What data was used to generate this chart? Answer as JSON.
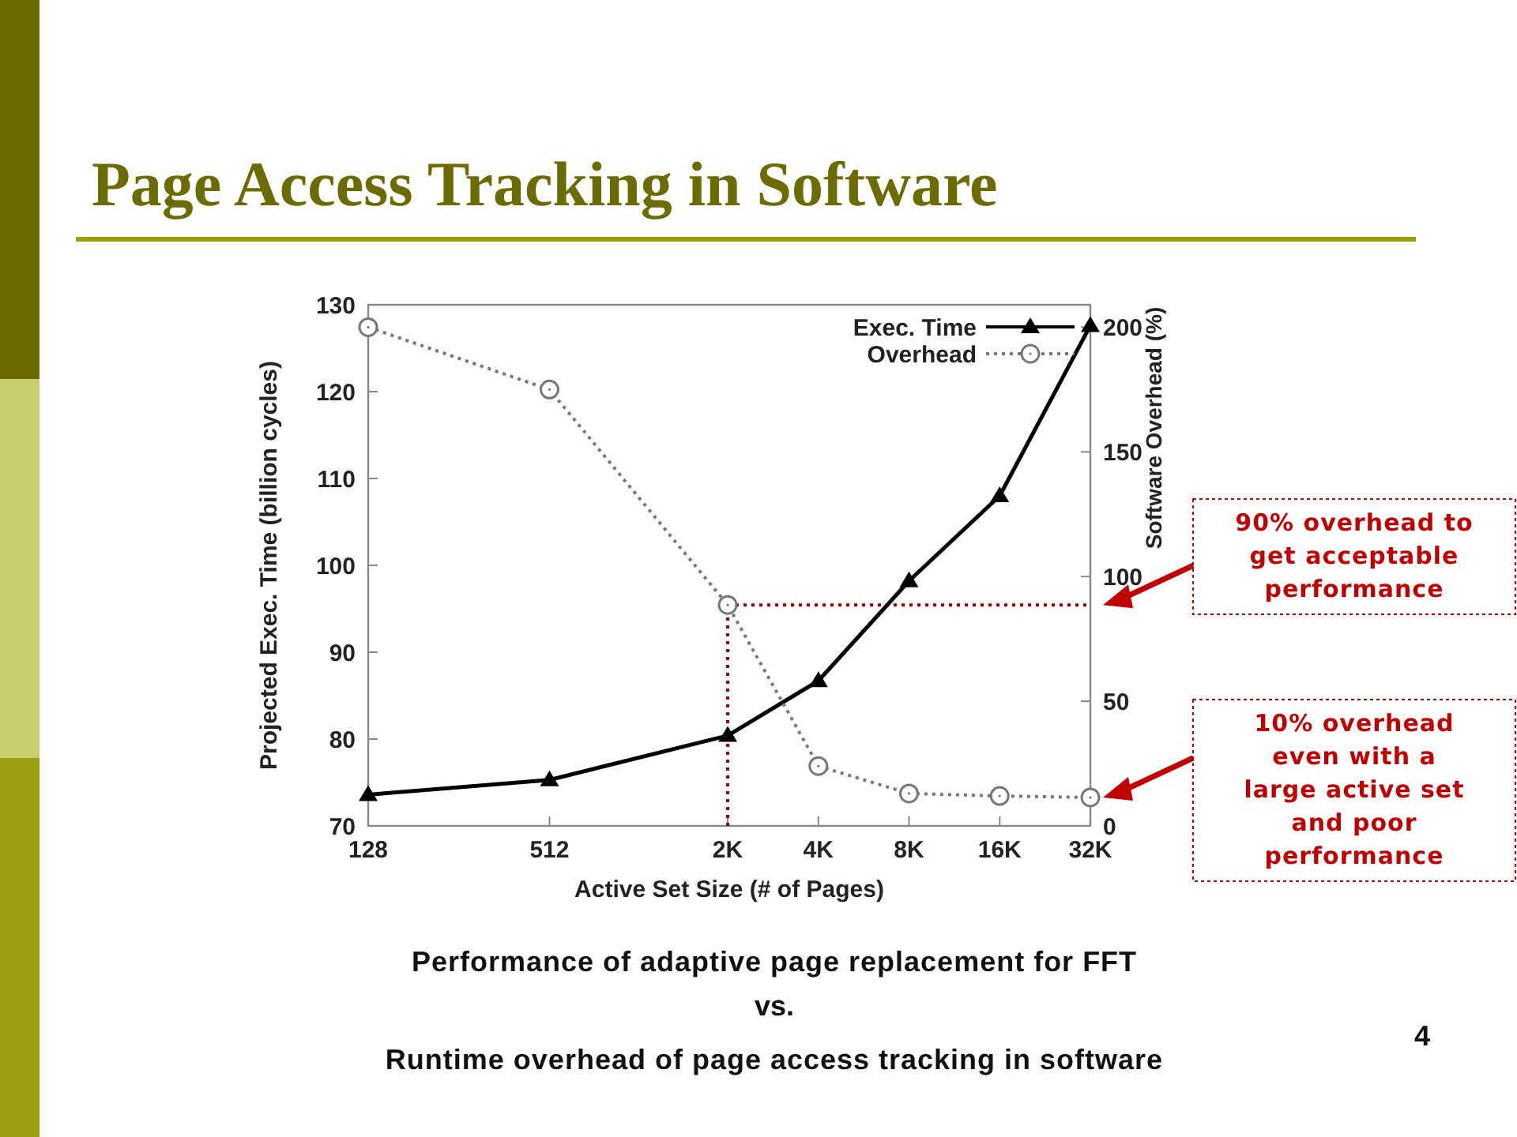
{
  "chart_data": {
    "type": "line",
    "title": "Page Access Tracking in Software",
    "xlabel": "Active Set Size (# of Pages)",
    "ylabel": "Projected Exec. Time (billion cycles)",
    "y2label": "Software Overhead (%)",
    "x": [
      128,
      512,
      2000,
      4000,
      8000,
      16000,
      32000
    ],
    "log": "x",
    "xlim": [
      128,
      32000
    ],
    "xticks": [
      128,
      512,
      {
        "value": 2000,
        "label": "2K"
      },
      {
        "value": 4000,
        "label": "4K"
      },
      {
        "value": 8000,
        "label": "8K"
      },
      {
        "value": 16000,
        "label": "16K"
      },
      {
        "value": 32000,
        "label": "32K"
      }
    ],
    "ylim": [
      70,
      130
    ],
    "yticks": [
      70,
      80,
      90,
      100,
      110,
      120,
      130
    ],
    "y2lim": [
      0,
      209
    ],
    "y2ticks": [
      0,
      50,
      100,
      150,
      200
    ],
    "series": [
      {
        "name": "Exec. Time",
        "color": "#000000",
        "marker": "triangle",
        "line_style": "solid",
        "values": [
          73.6,
          75.3,
          80.4,
          86.7,
          98.2,
          108,
          127.6
        ]
      },
      {
        "name": "Overhead",
        "color": "#777777",
        "marker": "circle",
        "line_style": "dotted",
        "axis": "y2",
        "values": [
          200,
          175,
          88.6,
          24,
          13,
          12,
          11.4
        ]
      }
    ],
    "legend": "top right",
    "grid": false,
    "ref_lines": [
      {
        "axis": "x",
        "value": 2000,
        "color": "#a00000",
        "line_style": "dotted"
      },
      {
        "axis": "y2",
        "value": 88.6,
        "color": "#a00000",
        "line_style": "dotted"
      }
    ],
    "annotations": [
      "90% overhead to get acceptable performance",
      "10% overhead even with a large active set and poor performance",
      "Performance of adaptive page replacement for FFT",
      "vs.",
      "Runtime overhead of page access tracking in software",
      "4"
    ]
  }
}
